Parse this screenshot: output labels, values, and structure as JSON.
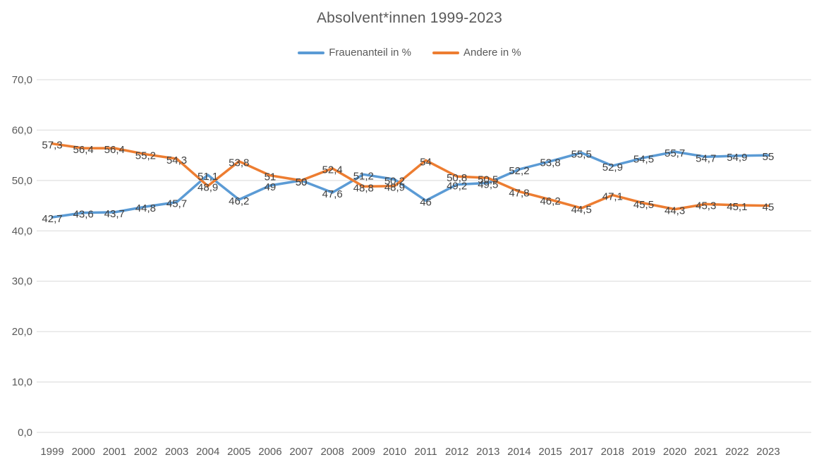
{
  "chart": {
    "title": "Absolvent*innen 1999-2023"
  },
  "chart_data": {
    "type": "line",
    "title": "Absolvent*innen 1999-2023",
    "categories": [
      "1999",
      "2000",
      "2001",
      "2002",
      "2003",
      "2004",
      "2005",
      "2006",
      "2007",
      "2008",
      "2009",
      "2010",
      "2011",
      "2012",
      "2013",
      "2014",
      "2015",
      "2017",
      "2018",
      "2019",
      "2020",
      "2021",
      "2022",
      "2023"
    ],
    "series": [
      {
        "name": "Frauenanteil in %",
        "color": "#5B9BD5",
        "values": [
          42.7,
          43.6,
          43.7,
          44.8,
          45.7,
          51.1,
          46.2,
          49,
          50,
          47.6,
          51.2,
          50.2,
          46,
          49.2,
          49.5,
          52.2,
          53.8,
          55.5,
          52.9,
          54.5,
          55.7,
          54.7,
          54.9,
          55
        ]
      },
      {
        "name": "Andere in %",
        "color": "#ED7D31",
        "values": [
          57.3,
          56.4,
          56.4,
          55.2,
          54.3,
          48.9,
          53.8,
          51,
          50,
          52.4,
          48.8,
          48.9,
          54,
          50.8,
          50.5,
          47.8,
          46.2,
          44.5,
          47.1,
          45.5,
          44.3,
          45.3,
          45.1,
          45
        ]
      }
    ],
    "xlabel": "",
    "ylabel": "",
    "ylim": [
      0,
      70
    ],
    "ytick_step": 10,
    "ytick_labels": [
      "0,0",
      "10,0",
      "20,0",
      "30,0",
      "40,0",
      "50,0",
      "60,0",
      "70,0"
    ],
    "grid": "horizontal",
    "gridline_color": "#D9D9D9",
    "legend_position": "top",
    "data_labels": true,
    "data_label_color": "#404040",
    "axis_label_color": "#595959",
    "decimal_separator": ","
  }
}
